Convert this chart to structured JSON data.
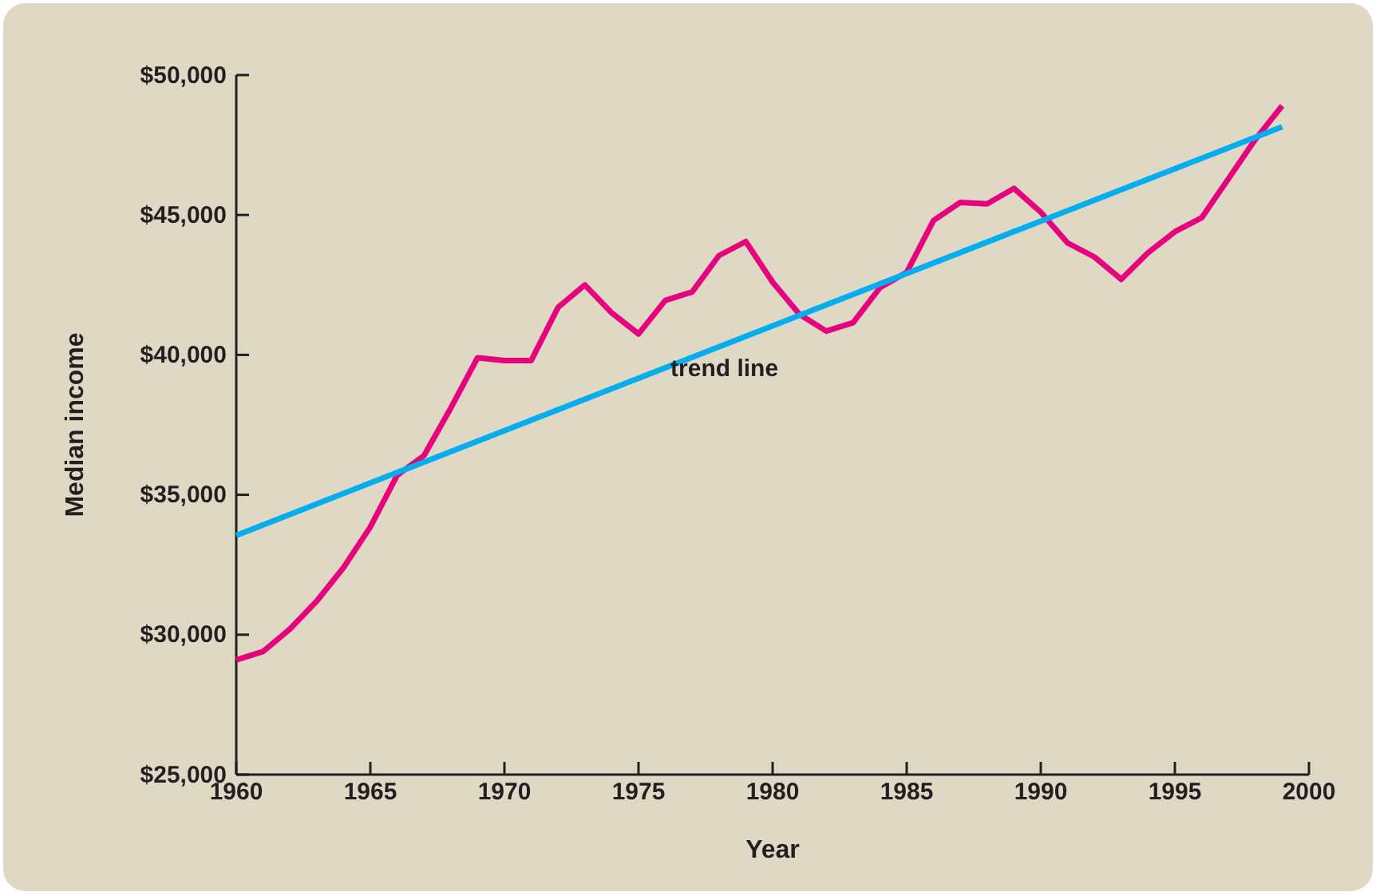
{
  "chart_data": {
    "type": "line",
    "xlabel": "Year",
    "ylabel": "Median income",
    "x": [
      1960,
      1961,
      1962,
      1963,
      1964,
      1965,
      1966,
      1967,
      1968,
      1969,
      1970,
      1971,
      1972,
      1973,
      1974,
      1975,
      1976,
      1977,
      1978,
      1979,
      1980,
      1981,
      1982,
      1983,
      1984,
      1985,
      1986,
      1987,
      1988,
      1989,
      1990,
      1991,
      1992,
      1993,
      1994,
      1995,
      1996,
      1997,
      1998,
      1999
    ],
    "series": [
      {
        "color": "#e6007e",
        "values": [
          29100,
          29400,
          30200,
          31200,
          32400,
          33850,
          35700,
          36400,
          38100,
          39900,
          39800,
          39800,
          41700,
          42500,
          41500,
          40750,
          41950,
          42250,
          43550,
          44050,
          42600,
          41450,
          40850,
          41150,
          42400,
          42950,
          44800,
          45450,
          45400,
          45950,
          45100,
          44000,
          43500,
          42700,
          43650,
          44400,
          44900,
          46300,
          47700,
          48900
        ]
      },
      {
        "type": "line",
        "name": "trend line",
        "color": "#00aeef",
        "x": [
          1960,
          1999
        ],
        "values": [
          33550,
          48150
        ]
      }
    ],
    "xlim": [
      1960,
      2000
    ],
    "xticks": [
      1960,
      1965,
      1970,
      1975,
      1980,
      1985,
      1990,
      1995,
      2000
    ],
    "ylim": [
      25000,
      50000
    ],
    "yticks": [
      {
        "value": 25000,
        "label": "$25,000"
      },
      {
        "value": 30000,
        "label": "$30,000"
      },
      {
        "value": 35000,
        "label": "$35,000"
      },
      {
        "value": 40000,
        "label": "$40,000"
      },
      {
        "value": 45000,
        "label": "$45,000"
      },
      {
        "value": 50000,
        "label": "$50,000"
      }
    ],
    "marker": "none",
    "line_style": "solid"
  }
}
